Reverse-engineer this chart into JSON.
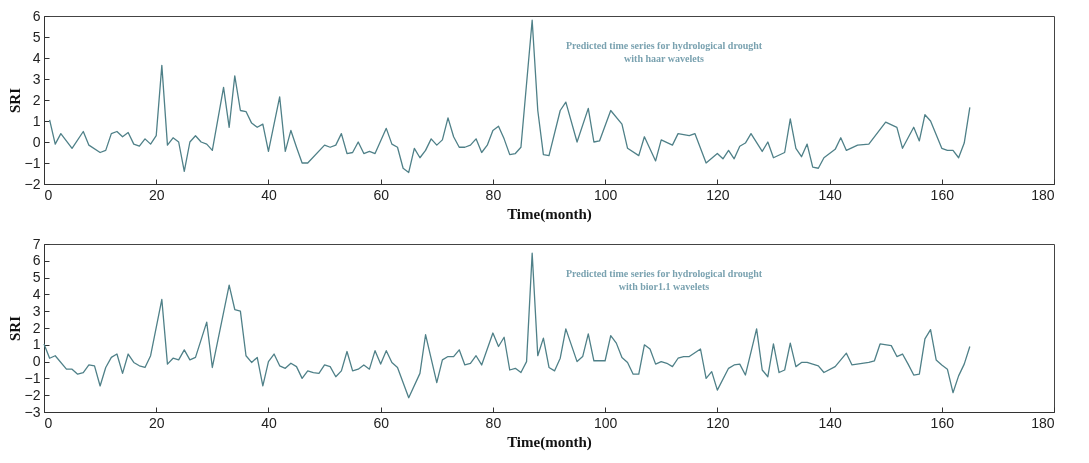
{
  "chart_data": [
    {
      "type": "line",
      "xlabel": "Time(month)",
      "ylabel": "SRI",
      "annotations": [
        "Predicted time series for hydrological drought",
        "with haar wavelets"
      ],
      "xlim": [
        0,
        180
      ],
      "xticks": [
        0,
        20,
        40,
        60,
        80,
        100,
        120,
        140,
        160,
        180
      ],
      "ylim": [
        -2,
        6
      ],
      "yticks": [
        -2,
        -1,
        0,
        1,
        2,
        3,
        4,
        5,
        6
      ],
      "grid": false,
      "series": [
        {
          "color": "#4f8088",
          "x": [
            1,
            2,
            3,
            5,
            7,
            8,
            10,
            11,
            12,
            13,
            14,
            15,
            16,
            17,
            18,
            19,
            20,
            21,
            22,
            23,
            24,
            25,
            26,
            27,
            28,
            29,
            30,
            32,
            33,
            34,
            35,
            36,
            37,
            38,
            39,
            40,
            42,
            43,
            44,
            45,
            46,
            47,
            50,
            51,
            52,
            53,
            54,
            55,
            56,
            57,
            58,
            59,
            61,
            62,
            63,
            64,
            65,
            66,
            67,
            68,
            69,
            70,
            71,
            72,
            73,
            74,
            75,
            76,
            77,
            78,
            79,
            80,
            81,
            82,
            83,
            84,
            85,
            87,
            88,
            89,
            90,
            92,
            93,
            95,
            97,
            98,
            99,
            101,
            103,
            104,
            106,
            107,
            109,
            110,
            112,
            113,
            115,
            116,
            118,
            120,
            121,
            122,
            123,
            124,
            125,
            126,
            128,
            129,
            130,
            132,
            133,
            134,
            135,
            136,
            137,
            138,
            139,
            141,
            142,
            143,
            145,
            147,
            150,
            152,
            153,
            155,
            156,
            157,
            158,
            160,
            161,
            162,
            163,
            164,
            165
          ],
          "values": [
            1.05,
            -0.1,
            0.4,
            -0.3,
            0.5,
            -0.15,
            -0.5,
            -0.4,
            0.4,
            0.5,
            0.25,
            0.45,
            -0.1,
            -0.2,
            0.15,
            -0.1,
            0.3,
            3.65,
            -0.15,
            0.2,
            0,
            -1.4,
            0,
            0.3,
            0,
            -0.1,
            -0.4,
            2.6,
            0.7,
            3.15,
            1.5,
            1.45,
            0.9,
            0.7,
            0.85,
            -0.45,
            2.15,
            -0.45,
            0.55,
            -0.25,
            -1,
            -1,
            -0.15,
            -0.25,
            -0.15,
            0.4,
            -0.55,
            -0.5,
            0,
            -0.55,
            -0.45,
            -0.55,
            0.65,
            -0.1,
            -0.25,
            -1.25,
            -1.45,
            -0.3,
            -0.75,
            -0.4,
            0.15,
            -0.15,
            0.1,
            1.15,
            0.25,
            -0.25,
            -0.25,
            -0.15,
            0.15,
            -0.5,
            -0.15,
            0.55,
            0.75,
            0.15,
            -0.6,
            -0.55,
            -0.25,
            5.8,
            1.5,
            -0.6,
            -0.65,
            1.5,
            1.9,
            0,
            1.6,
            0,
            0.05,
            1.5,
            0.85,
            -0.3,
            -0.65,
            0.25,
            -0.9,
            0.1,
            -0.15,
            0.4,
            0.3,
            0.4,
            -1,
            -0.55,
            -0.8,
            -0.4,
            -0.8,
            -0.2,
            -0.05,
            0.4,
            -0.45,
            0,
            -0.75,
            -0.5,
            1.1,
            -0.3,
            -0.7,
            -0.1,
            -1.2,
            -1.25,
            -0.75,
            -0.35,
            0.2,
            -0.4,
            -0.15,
            -0.1,
            0.95,
            0.7,
            -0.3,
            0.7,
            0.05,
            1.3,
            1,
            -0.3,
            -0.4,
            -0.4,
            -0.75,
            -0.05,
            1.65
          ]
        }
      ]
    },
    {
      "type": "line",
      "xlabel": "Time(month)",
      "ylabel": "SRI",
      "annotations": [
        "Predicted time series for hydrological drought",
        "with bior1.1 wavelets"
      ],
      "xlim": [
        0,
        180
      ],
      "xticks": [
        0,
        20,
        40,
        60,
        80,
        100,
        120,
        140,
        160,
        180
      ],
      "ylim": [
        -3,
        7
      ],
      "yticks": [
        -3,
        -2,
        -1,
        0,
        1,
        2,
        3,
        4,
        5,
        6,
        7
      ],
      "grid": false,
      "series": [
        {
          "color": "#4f8088",
          "x": [
            0,
            1,
            2,
            4,
            5,
            6,
            7,
            8,
            9,
            10,
            11,
            12,
            13,
            14,
            15,
            16,
            17,
            18,
            19,
            21,
            22,
            23,
            24,
            25,
            26,
            27,
            29,
            30,
            33,
            34,
            35,
            36,
            37,
            38,
            39,
            40,
            41,
            42,
            43,
            44,
            45,
            46,
            47,
            48,
            49,
            50,
            51,
            52,
            53,
            54,
            55,
            56,
            57,
            58,
            59,
            60,
            61,
            62,
            63,
            65,
            67,
            68,
            70,
            71,
            72,
            73,
            74,
            75,
            76,
            77,
            78,
            80,
            81,
            82,
            83,
            84,
            85,
            86,
            87,
            88,
            89,
            90,
            91,
            92,
            93,
            95,
            96,
            97,
            98,
            100,
            101,
            102,
            103,
            104,
            105,
            106,
            107,
            108,
            109,
            110,
            111,
            112,
            113,
            114,
            115,
            117,
            118,
            119,
            120,
            122,
            123,
            124,
            125,
            127,
            128,
            129,
            130,
            131,
            132,
            133,
            134,
            135,
            136,
            138,
            139,
            141,
            143,
            144,
            147,
            148,
            149,
            151,
            152,
            153,
            154,
            155,
            156,
            157,
            158,
            159,
            160,
            161,
            162,
            163,
            164,
            165
          ],
          "values": [
            1.05,
            0.2,
            0.35,
            -0.45,
            -0.45,
            -0.75,
            -0.65,
            -0.2,
            -0.25,
            -1.45,
            -0.35,
            0.25,
            0.45,
            -0.7,
            0.45,
            -0.05,
            -0.25,
            -0.35,
            0.35,
            3.7,
            -0.15,
            0.2,
            0.1,
            0.7,
            0.1,
            0.25,
            2.35,
            -0.35,
            4.55,
            3.1,
            3,
            0.35,
            -0.05,
            0.25,
            -1.45,
            0,
            0.45,
            -0.25,
            -0.4,
            -0.1,
            -0.3,
            -1,
            -0.55,
            -0.65,
            -0.7,
            -0.2,
            -0.3,
            -0.9,
            -0.55,
            0.6,
            -0.55,
            -0.45,
            -0.2,
            -0.45,
            0.65,
            -0.15,
            0.65,
            -0.05,
            -0.35,
            -2.15,
            -0.7,
            1.6,
            -1.25,
            0.1,
            0.3,
            0.3,
            0.7,
            -0.2,
            -0.1,
            0.35,
            -0.2,
            1.7,
            0.9,
            1.45,
            -0.5,
            -0.4,
            -0.65,
            0,
            6.45,
            0.35,
            1.4,
            -0.35,
            -0.55,
            0.2,
            1.95,
            0,
            0.3,
            1.65,
            0.05,
            0.05,
            1.55,
            1.1,
            0.25,
            -0.05,
            -0.75,
            -0.75,
            1,
            0.75,
            -0.15,
            0,
            -0.1,
            -0.3,
            0.2,
            0.3,
            0.3,
            0.75,
            -1,
            -0.6,
            -1.7,
            -0.4,
            -0.2,
            -0.15,
            -0.8,
            1.95,
            -0.5,
            -0.9,
            1.05,
            -0.65,
            -0.5,
            1.1,
            -0.3,
            -0.05,
            -0.05,
            -0.25,
            -0.65,
            -0.3,
            0.5,
            -0.2,
            -0.05,
            0.05,
            1.05,
            0.95,
            0.3,
            0.45,
            -0.15,
            -0.8,
            -0.75,
            1.35,
            1.9,
            0.1,
            -0.2,
            -0.45,
            -1.85,
            -0.85,
            -0.15,
            0.9
          ]
        }
      ]
    }
  ]
}
